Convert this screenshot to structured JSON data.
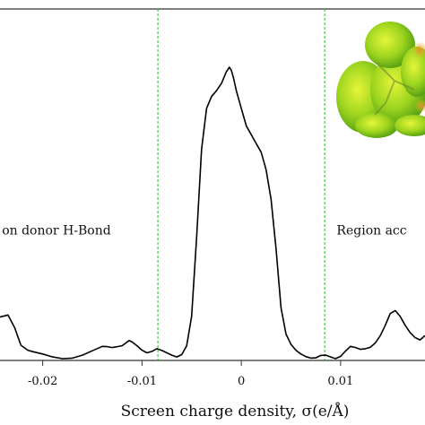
{
  "chart_data": {
    "type": "line",
    "xlabel": "Screen charge density, σ(e/Å)",
    "xlim": [
      -0.0243,
      0.0185
    ],
    "ylim": [
      0,
      1
    ],
    "x_ticks": [
      {
        "value": -0.02,
        "label": "-0.02"
      },
      {
        "value": -0.01,
        "label": "-0.01"
      },
      {
        "value": 0,
        "label": "0"
      },
      {
        "value": 0.01,
        "label": "0.01"
      }
    ],
    "threshold_lines": [
      -0.0084,
      0.0084
    ],
    "threshold_color": "#22bb22",
    "line_color": "#000000",
    "annotations": [
      {
        "text": "on donor H-Bond",
        "x": -0.0241,
        "y": 0.43
      },
      {
        "text": "Region acc",
        "x": 0.0096,
        "y": 0.43
      }
    ],
    "series": [
      {
        "x": [
          -0.0243,
          -0.0235,
          -0.0228,
          -0.0222,
          -0.0215,
          -0.021,
          -0.02,
          -0.019,
          -0.018,
          -0.017,
          -0.016,
          -0.015,
          -0.014,
          -0.0135,
          -0.013,
          -0.012,
          -0.0113,
          -0.011,
          -0.0105,
          -0.01,
          -0.0095,
          -0.009,
          -0.0085,
          -0.008,
          -0.0075,
          -0.007,
          -0.0065,
          -0.006,
          -0.0055,
          -0.005,
          -0.0045,
          -0.004,
          -0.0035,
          -0.003,
          -0.0025,
          -0.002,
          -0.0015,
          -0.0012,
          -0.001,
          -0.0008,
          -0.0005,
          0.0,
          0.0005,
          0.001,
          0.0015,
          0.002,
          0.0025,
          0.003,
          0.0035,
          0.004,
          0.0045,
          0.005,
          0.0055,
          0.006,
          0.0065,
          0.007,
          0.0075,
          0.008,
          0.0085,
          0.009,
          0.0095,
          0.01,
          0.0105,
          0.011,
          0.0115,
          0.012,
          0.0125,
          0.013,
          0.0135,
          0.014,
          0.0145,
          0.015,
          0.0155,
          0.016,
          0.0165,
          0.017,
          0.0175,
          0.018,
          0.0185
        ],
        "y": [
          0.148,
          0.155,
          0.11,
          0.052,
          0.035,
          0.03,
          0.022,
          0.012,
          0.006,
          0.008,
          0.018,
          0.033,
          0.048,
          0.047,
          0.044,
          0.05,
          0.068,
          0.063,
          0.05,
          0.035,
          0.026,
          0.031,
          0.04,
          0.034,
          0.026,
          0.018,
          0.012,
          0.02,
          0.05,
          0.15,
          0.42,
          0.72,
          0.86,
          0.9,
          0.92,
          0.945,
          0.985,
          1.0,
          0.99,
          0.965,
          0.92,
          0.86,
          0.8,
          0.77,
          0.74,
          0.71,
          0.65,
          0.55,
          0.38,
          0.18,
          0.09,
          0.055,
          0.035,
          0.022,
          0.013,
          0.008,
          0.009,
          0.017,
          0.018,
          0.012,
          0.006,
          0.014,
          0.032,
          0.048,
          0.044,
          0.038,
          0.04,
          0.045,
          0.06,
          0.085,
          0.12,
          0.16,
          0.17,
          0.15,
          0.12,
          0.095,
          0.078,
          0.07,
          0.085
        ]
      }
    ]
  }
}
